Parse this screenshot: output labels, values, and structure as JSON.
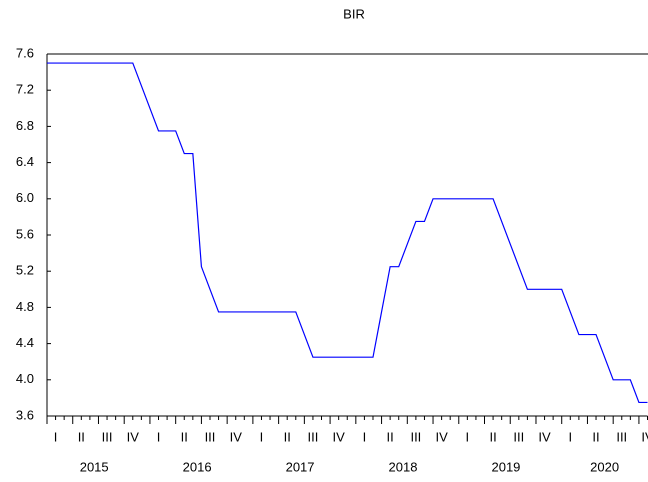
{
  "chart_data": {
    "type": "line",
    "title": "BIR",
    "categories": [
      null,
      "I",
      null,
      null,
      "II",
      null,
      null,
      "III",
      null,
      null,
      "IV",
      null,
      null,
      "I",
      null,
      null,
      "II",
      null,
      null,
      "III",
      null,
      null,
      "IV",
      null,
      null,
      "I",
      null,
      null,
      "II",
      null,
      null,
      "III",
      null,
      null,
      "IV",
      null,
      null,
      "I",
      null,
      null,
      "II",
      null,
      null,
      "III",
      null,
      null,
      "IV",
      null,
      null,
      "I",
      null,
      null,
      "II",
      null,
      null,
      "III",
      null,
      null,
      "IV",
      null,
      null,
      "I",
      null,
      null,
      "II",
      null,
      null,
      "III",
      null,
      null,
      "IV"
    ],
    "years": [
      "2015",
      "2016",
      "2017",
      "2018",
      "2019",
      "2020"
    ],
    "series": [
      {
        "color": "#0000ff",
        "values": [
          7.5,
          7.5,
          7.5,
          7.5,
          7.5,
          7.5,
          7.5,
          7.5,
          7.5,
          7.5,
          7.5,
          7.25,
          7.0,
          6.75,
          6.75,
          6.75,
          6.5,
          6.5,
          5.25,
          5.0,
          4.75,
          4.75,
          4.75,
          4.75,
          4.75,
          4.75,
          4.75,
          4.75,
          4.75,
          4.75,
          4.5,
          4.25,
          4.25,
          4.25,
          4.25,
          4.25,
          4.25,
          4.25,
          4.25,
          4.75,
          5.25,
          5.25,
          5.5,
          5.75,
          5.75,
          6.0,
          6.0,
          6.0,
          6.0,
          6.0,
          6.0,
          6.0,
          6.0,
          5.75,
          5.5,
          5.25,
          5.0,
          5.0,
          5.0,
          5.0,
          5.0,
          4.75,
          4.5,
          4.5,
          4.5,
          4.25,
          4.0,
          4.0,
          4.0,
          3.75,
          3.75
        ]
      }
    ],
    "ylim": [
      3.6,
      7.6
    ],
    "yticks": [
      3.6,
      {
        "value": 4.0,
        "label": "4.0"
      },
      4.4,
      4.8,
      5.2,
      5.6,
      {
        "value": 6.0,
        "label": "6.0"
      },
      6.4,
      6.8,
      7.2,
      7.6
    ]
  }
}
